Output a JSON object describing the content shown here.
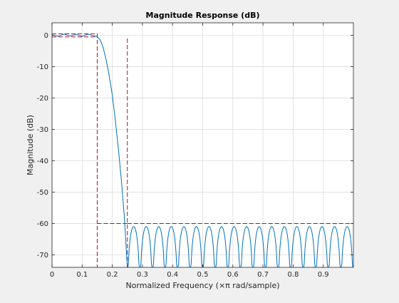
{
  "chart_data": {
    "type": "line",
    "title": "Magnitude Response (dB)",
    "xlabel": "Normalized Frequency (×π rad/sample)",
    "ylabel": "Magnitude (dB)",
    "xlim": [
      0,
      1
    ],
    "ylim": [
      -74,
      4
    ],
    "grid": true,
    "x_ticks": [
      0,
      0.1,
      0.2,
      0.3,
      0.4,
      0.5,
      0.6,
      0.7,
      0.8,
      0.9
    ],
    "x_tick_labels": [
      "0",
      "0.1",
      "0.2",
      "0.3",
      "0.4",
      "0.5",
      "0.6",
      "0.7",
      "0.8",
      "0.9"
    ],
    "y_ticks": [
      0,
      -10,
      -20,
      -30,
      -40,
      -50,
      -60,
      -70
    ],
    "y_tick_labels": [
      "0",
      "-10",
      "-20",
      "-30",
      "-40",
      "-50",
      "-60",
      "-70"
    ],
    "series": [
      {
        "role": "magnitude-response",
        "color": "#0072bd",
        "passband_edge": 0.15,
        "passband_ripple_db": 0.5,
        "stopband_edge": 0.25,
        "stopband_peak_db": -61,
        "stopband_lobes": 18,
        "x": [
          0,
          0.02,
          0.04,
          0.06,
          0.08,
          0.1,
          0.12,
          0.14,
          0.15,
          0.16,
          0.17,
          0.18,
          0.19,
          0.2,
          0.21,
          0.22,
          0.23,
          0.24,
          0.25
        ],
        "y": [
          0.2,
          -0.3,
          0.4,
          -0.2,
          0.3,
          -0.3,
          0.4,
          -0.2,
          -0.4,
          -1.5,
          -4,
          -8,
          -13,
          -19,
          -27,
          -36,
          -46,
          -58,
          -74
        ]
      },
      {
        "role": "specification-mask",
        "color": "#a2142f",
        "style": "dashed",
        "paths": [
          {
            "x": [
              0,
              0.15,
              0.15
            ],
            "y": [
              0.5,
              0.5,
              -74
            ]
          },
          {
            "x": [
              0,
              0.15
            ],
            "y": [
              -0.5,
              -0.5
            ]
          },
          {
            "x": [
              0.25,
              0.25
            ],
            "y": [
              -74,
              -0.5
            ]
          },
          {
            "x": [
              0.15,
              0.25
            ],
            "y": [
              -60,
              -60
            ]
          },
          {
            "x": [
              0.25,
              1
            ],
            "y": [
              -60,
              -60
            ]
          }
        ]
      }
    ]
  }
}
